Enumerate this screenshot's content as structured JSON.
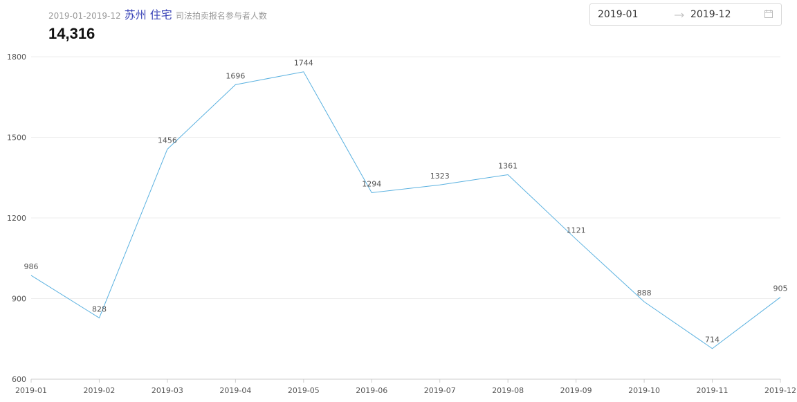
{
  "header": {
    "period": "2019-01-2019-12",
    "city": "苏州 住宅",
    "metric": "司法拍卖报名参与者人数",
    "total": "14,316"
  },
  "date_picker": {
    "start": "2019-01",
    "end": "2019-12"
  },
  "chart_data": {
    "type": "line",
    "categories": [
      "2019-01",
      "2019-02",
      "2019-03",
      "2019-04",
      "2019-05",
      "2019-06",
      "2019-07",
      "2019-08",
      "2019-09",
      "2019-10",
      "2019-11",
      "2019-12"
    ],
    "values": [
      986,
      828,
      1456,
      1696,
      1744,
      1294,
      1323,
      1361,
      1121,
      888,
      714,
      905
    ],
    "color": "#5ab1e0",
    "ylim": [
      600,
      1800
    ],
    "yticks": [
      600,
      900,
      1200,
      1500,
      1800
    ],
    "grid": true
  }
}
